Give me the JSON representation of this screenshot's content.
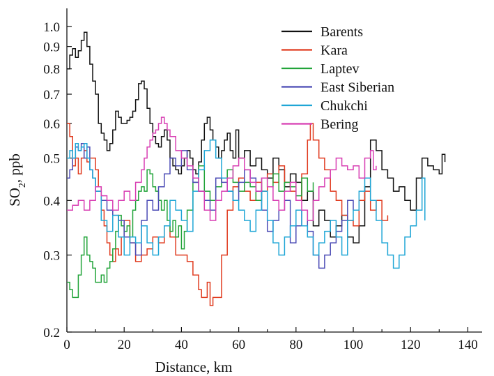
{
  "chart_data": {
    "type": "line",
    "title": "",
    "xlabel": "Distance, km",
    "ylabel": "SO₂, ppb",
    "ylabel_main": "SO",
    "ylabel_sub": "2",
    "ylabel_rest": ", ppb",
    "xlim": [
      0,
      145
    ],
    "ylim": [
      0.2,
      1.1
    ],
    "y_scale": "log",
    "grid": false,
    "legend_position": "top-right",
    "x_ticks": [
      0,
      20,
      40,
      60,
      80,
      100,
      120,
      140
    ],
    "x_tick_labels": [
      "0",
      "20",
      "40",
      "60",
      "80",
      "100",
      "120",
      "140"
    ],
    "y_ticks": [
      0.2,
      0.3,
      0.4,
      0.5,
      0.6,
      0.7,
      0.8,
      0.9,
      1.0
    ],
    "y_tick_labels": [
      "0.2",
      "0.3",
      "0.4",
      "0.5",
      "0.6",
      "0.7",
      "0.8",
      "0.9",
      "1.0"
    ],
    "series": [
      {
        "name": "Barents",
        "color": "#111111",
        "x": [
          0,
          1,
          2,
          3,
          4,
          5,
          6,
          7,
          8,
          9,
          10,
          11,
          12,
          13,
          14,
          15,
          16,
          17,
          18,
          19,
          20,
          21,
          22,
          23,
          24,
          25,
          26,
          27,
          28,
          29,
          30,
          31,
          32,
          33,
          34,
          35,
          36,
          37,
          38,
          39,
          40,
          41,
          42,
          43,
          44,
          45,
          46,
          47,
          48,
          49,
          50,
          51,
          52,
          53,
          54,
          55,
          56,
          57,
          58,
          59,
          60,
          62,
          64,
          66,
          68,
          70,
          72,
          74,
          76,
          78,
          80,
          82,
          84,
          86,
          88,
          90,
          92,
          94,
          96,
          98,
          100,
          102,
          104,
          106,
          108,
          110,
          112,
          114,
          116,
          118,
          120,
          122,
          124,
          126,
          128,
          130,
          131,
          132
        ],
        "values": [
          0.8,
          0.86,
          0.89,
          0.85,
          0.88,
          0.93,
          0.97,
          0.9,
          0.82,
          0.75,
          0.7,
          0.6,
          0.57,
          0.55,
          0.52,
          0.54,
          0.58,
          0.64,
          0.62,
          0.6,
          0.6,
          0.61,
          0.62,
          0.64,
          0.68,
          0.74,
          0.75,
          0.72,
          0.65,
          0.6,
          0.56,
          0.54,
          0.53,
          0.56,
          0.58,
          0.55,
          0.5,
          0.48,
          0.47,
          0.46,
          0.48,
          0.5,
          0.52,
          0.5,
          0.47,
          0.46,
          0.49,
          0.55,
          0.6,
          0.62,
          0.58,
          0.55,
          0.53,
          0.5,
          0.52,
          0.55,
          0.57,
          0.52,
          0.5,
          0.58,
          0.5,
          0.52,
          0.48,
          0.5,
          0.47,
          0.45,
          0.5,
          0.47,
          0.43,
          0.46,
          0.44,
          0.4,
          0.42,
          0.35,
          0.38,
          0.36,
          0.33,
          0.35,
          0.37,
          0.33,
          0.32,
          0.35,
          0.43,
          0.55,
          0.52,
          0.47,
          0.45,
          0.42,
          0.43,
          0.4,
          0.38,
          0.45,
          0.5,
          0.48,
          0.47,
          0.46,
          0.51,
          0.49
        ]
      },
      {
        "name": "Kara",
        "color": "#e03a1e",
        "x": [
          0,
          1,
          2,
          3,
          4,
          5,
          6,
          7,
          8,
          9,
          10,
          11,
          12,
          13,
          14,
          15,
          16,
          17,
          18,
          19,
          20,
          22,
          24,
          26,
          28,
          30,
          32,
          34,
          36,
          38,
          40,
          42,
          44,
          46,
          47,
          48,
          49,
          50,
          51,
          52,
          54,
          56,
          58,
          60,
          62,
          64,
          66,
          68,
          70,
          72,
          74,
          76,
          78,
          80,
          82,
          84,
          85,
          86,
          88,
          90,
          92,
          94,
          96,
          98,
          100,
          102,
          104,
          106,
          108,
          110,
          112
        ],
        "values": [
          0.6,
          0.56,
          0.48,
          0.5,
          0.46,
          0.5,
          0.52,
          0.49,
          0.5,
          0.5,
          0.47,
          0.43,
          0.38,
          0.35,
          0.32,
          0.3,
          0.29,
          0.31,
          0.3,
          0.33,
          0.36,
          0.32,
          0.29,
          0.3,
          0.31,
          0.33,
          0.32,
          0.35,
          0.33,
          0.3,
          0.3,
          0.29,
          0.27,
          0.25,
          0.24,
          0.24,
          0.26,
          0.23,
          0.24,
          0.24,
          0.3,
          0.38,
          0.43,
          0.45,
          0.42,
          0.4,
          0.44,
          0.42,
          0.46,
          0.44,
          0.48,
          0.44,
          0.42,
          0.4,
          0.46,
          0.55,
          0.6,
          0.55,
          0.5,
          0.47,
          0.42,
          0.4,
          0.37,
          0.36,
          0.35,
          0.4,
          0.42,
          0.38,
          0.4,
          0.36,
          0.37
        ]
      },
      {
        "name": "Laptev",
        "color": "#22a43a",
        "x": [
          0,
          1,
          2,
          3,
          4,
          5,
          6,
          7,
          8,
          9,
          10,
          11,
          12,
          13,
          14,
          15,
          16,
          17,
          18,
          19,
          20,
          21,
          22,
          23,
          24,
          25,
          26,
          27,
          28,
          29,
          30,
          31,
          32,
          33,
          34,
          35,
          36,
          37,
          38,
          39,
          40,
          41,
          42,
          44,
          46,
          48,
          50,
          52,
          54,
          56,
          58,
          60,
          62,
          64,
          66,
          68,
          70,
          72,
          74,
          76,
          78,
          80,
          82,
          84,
          86
        ],
        "values": [
          0.26,
          0.25,
          0.24,
          0.24,
          0.27,
          0.3,
          0.33,
          0.3,
          0.29,
          0.28,
          0.26,
          0.26,
          0.27,
          0.26,
          0.28,
          0.29,
          0.31,
          0.34,
          0.37,
          0.35,
          0.34,
          0.35,
          0.33,
          0.38,
          0.4,
          0.42,
          0.43,
          0.42,
          0.47,
          0.46,
          0.43,
          0.42,
          0.4,
          0.38,
          0.4,
          0.36,
          0.34,
          0.36,
          0.33,
          0.35,
          0.31,
          0.34,
          0.38,
          0.44,
          0.48,
          0.42,
          0.4,
          0.43,
          0.45,
          0.47,
          0.44,
          0.42,
          0.44,
          0.43,
          0.4,
          0.45,
          0.43,
          0.46,
          0.42,
          0.44,
          0.43,
          0.41,
          0.45,
          0.42,
          0.44
        ]
      },
      {
        "name": "East Siberian",
        "color": "#4b4bb5",
        "x": [
          0,
          1,
          2,
          3,
          4,
          5,
          6,
          7,
          8,
          9,
          10,
          12,
          14,
          16,
          18,
          20,
          22,
          24,
          26,
          28,
          30,
          32,
          34,
          36,
          38,
          40,
          42,
          44,
          46,
          48,
          50,
          52,
          54,
          56,
          58,
          60,
          62,
          64,
          66,
          68,
          70,
          72,
          74,
          76,
          78,
          80,
          82,
          84,
          86,
          88,
          90,
          92,
          94,
          96,
          98,
          100
        ],
        "values": [
          0.45,
          0.47,
          0.5,
          0.53,
          0.52,
          0.54,
          0.5,
          0.53,
          0.47,
          0.45,
          0.42,
          0.4,
          0.38,
          0.37,
          0.36,
          0.33,
          0.32,
          0.3,
          0.36,
          0.4,
          0.38,
          0.43,
          0.46,
          0.5,
          0.48,
          0.52,
          0.47,
          0.44,
          0.42,
          0.4,
          0.38,
          0.45,
          0.44,
          0.42,
          0.4,
          0.44,
          0.47,
          0.45,
          0.42,
          0.38,
          0.34,
          0.36,
          0.38,
          0.4,
          0.32,
          0.35,
          0.38,
          0.34,
          0.3,
          0.28,
          0.3,
          0.32,
          0.34,
          0.36,
          0.4,
          0.38
        ]
      },
      {
        "name": "Chukchi",
        "color": "#1fa6d6",
        "x": [
          0,
          1,
          2,
          3,
          4,
          5,
          6,
          7,
          8,
          9,
          10,
          12,
          14,
          16,
          18,
          20,
          22,
          24,
          26,
          28,
          30,
          32,
          34,
          36,
          38,
          40,
          42,
          44,
          46,
          48,
          50,
          52,
          54,
          56,
          58,
          60,
          62,
          64,
          66,
          68,
          70,
          72,
          74,
          76,
          78,
          80,
          82,
          84,
          86,
          88,
          90,
          92,
          94,
          96,
          98,
          100,
          102,
          104,
          106,
          108,
          110,
          112,
          114,
          116,
          118,
          120,
          122,
          124,
          125
        ],
        "values": [
          0.5,
          0.52,
          0.5,
          0.54,
          0.52,
          0.53,
          0.54,
          0.5,
          0.47,
          0.45,
          0.42,
          0.36,
          0.34,
          0.37,
          0.33,
          0.3,
          0.33,
          0.32,
          0.35,
          0.32,
          0.3,
          0.33,
          0.35,
          0.4,
          0.38,
          0.36,
          0.34,
          0.42,
          0.47,
          0.52,
          0.55,
          0.5,
          0.45,
          0.42,
          0.4,
          0.38,
          0.36,
          0.34,
          0.38,
          0.42,
          0.36,
          0.32,
          0.3,
          0.33,
          0.35,
          0.38,
          0.35,
          0.33,
          0.3,
          0.32,
          0.34,
          0.36,
          0.33,
          0.3,
          0.36,
          0.38,
          0.42,
          0.45,
          0.4,
          0.36,
          0.32,
          0.3,
          0.28,
          0.3,
          0.33,
          0.35,
          0.38,
          0.45,
          0.36
        ]
      },
      {
        "name": "Bering",
        "color": "#d83fb3",
        "x": [
          0,
          2,
          4,
          6,
          8,
          10,
          12,
          14,
          16,
          18,
          20,
          22,
          24,
          26,
          27,
          28,
          29,
          30,
          31,
          32,
          33,
          34,
          35,
          36,
          38,
          40,
          42,
          44,
          46,
          48,
          50,
          52,
          54,
          56,
          58,
          60,
          62,
          64,
          66,
          68,
          70,
          72,
          74,
          76,
          78,
          80,
          82,
          84,
          86,
          88,
          90,
          92,
          94,
          96,
          98,
          100,
          102,
          104,
          106,
          107,
          108
        ],
        "values": [
          0.38,
          0.39,
          0.4,
          0.38,
          0.4,
          0.43,
          0.41,
          0.4,
          0.38,
          0.4,
          0.42,
          0.4,
          0.44,
          0.47,
          0.5,
          0.53,
          0.55,
          0.57,
          0.58,
          0.6,
          0.62,
          0.6,
          0.58,
          0.56,
          0.52,
          0.5,
          0.48,
          0.45,
          0.42,
          0.38,
          0.36,
          0.4,
          0.42,
          0.45,
          0.48,
          0.5,
          0.47,
          0.44,
          0.42,
          0.45,
          0.43,
          0.4,
          0.38,
          0.42,
          0.44,
          0.4,
          0.38,
          0.36,
          0.4,
          0.43,
          0.45,
          0.47,
          0.5,
          0.48,
          0.47,
          0.48,
          0.45,
          0.5,
          0.52,
          0.47,
          0.48
        ]
      }
    ]
  }
}
